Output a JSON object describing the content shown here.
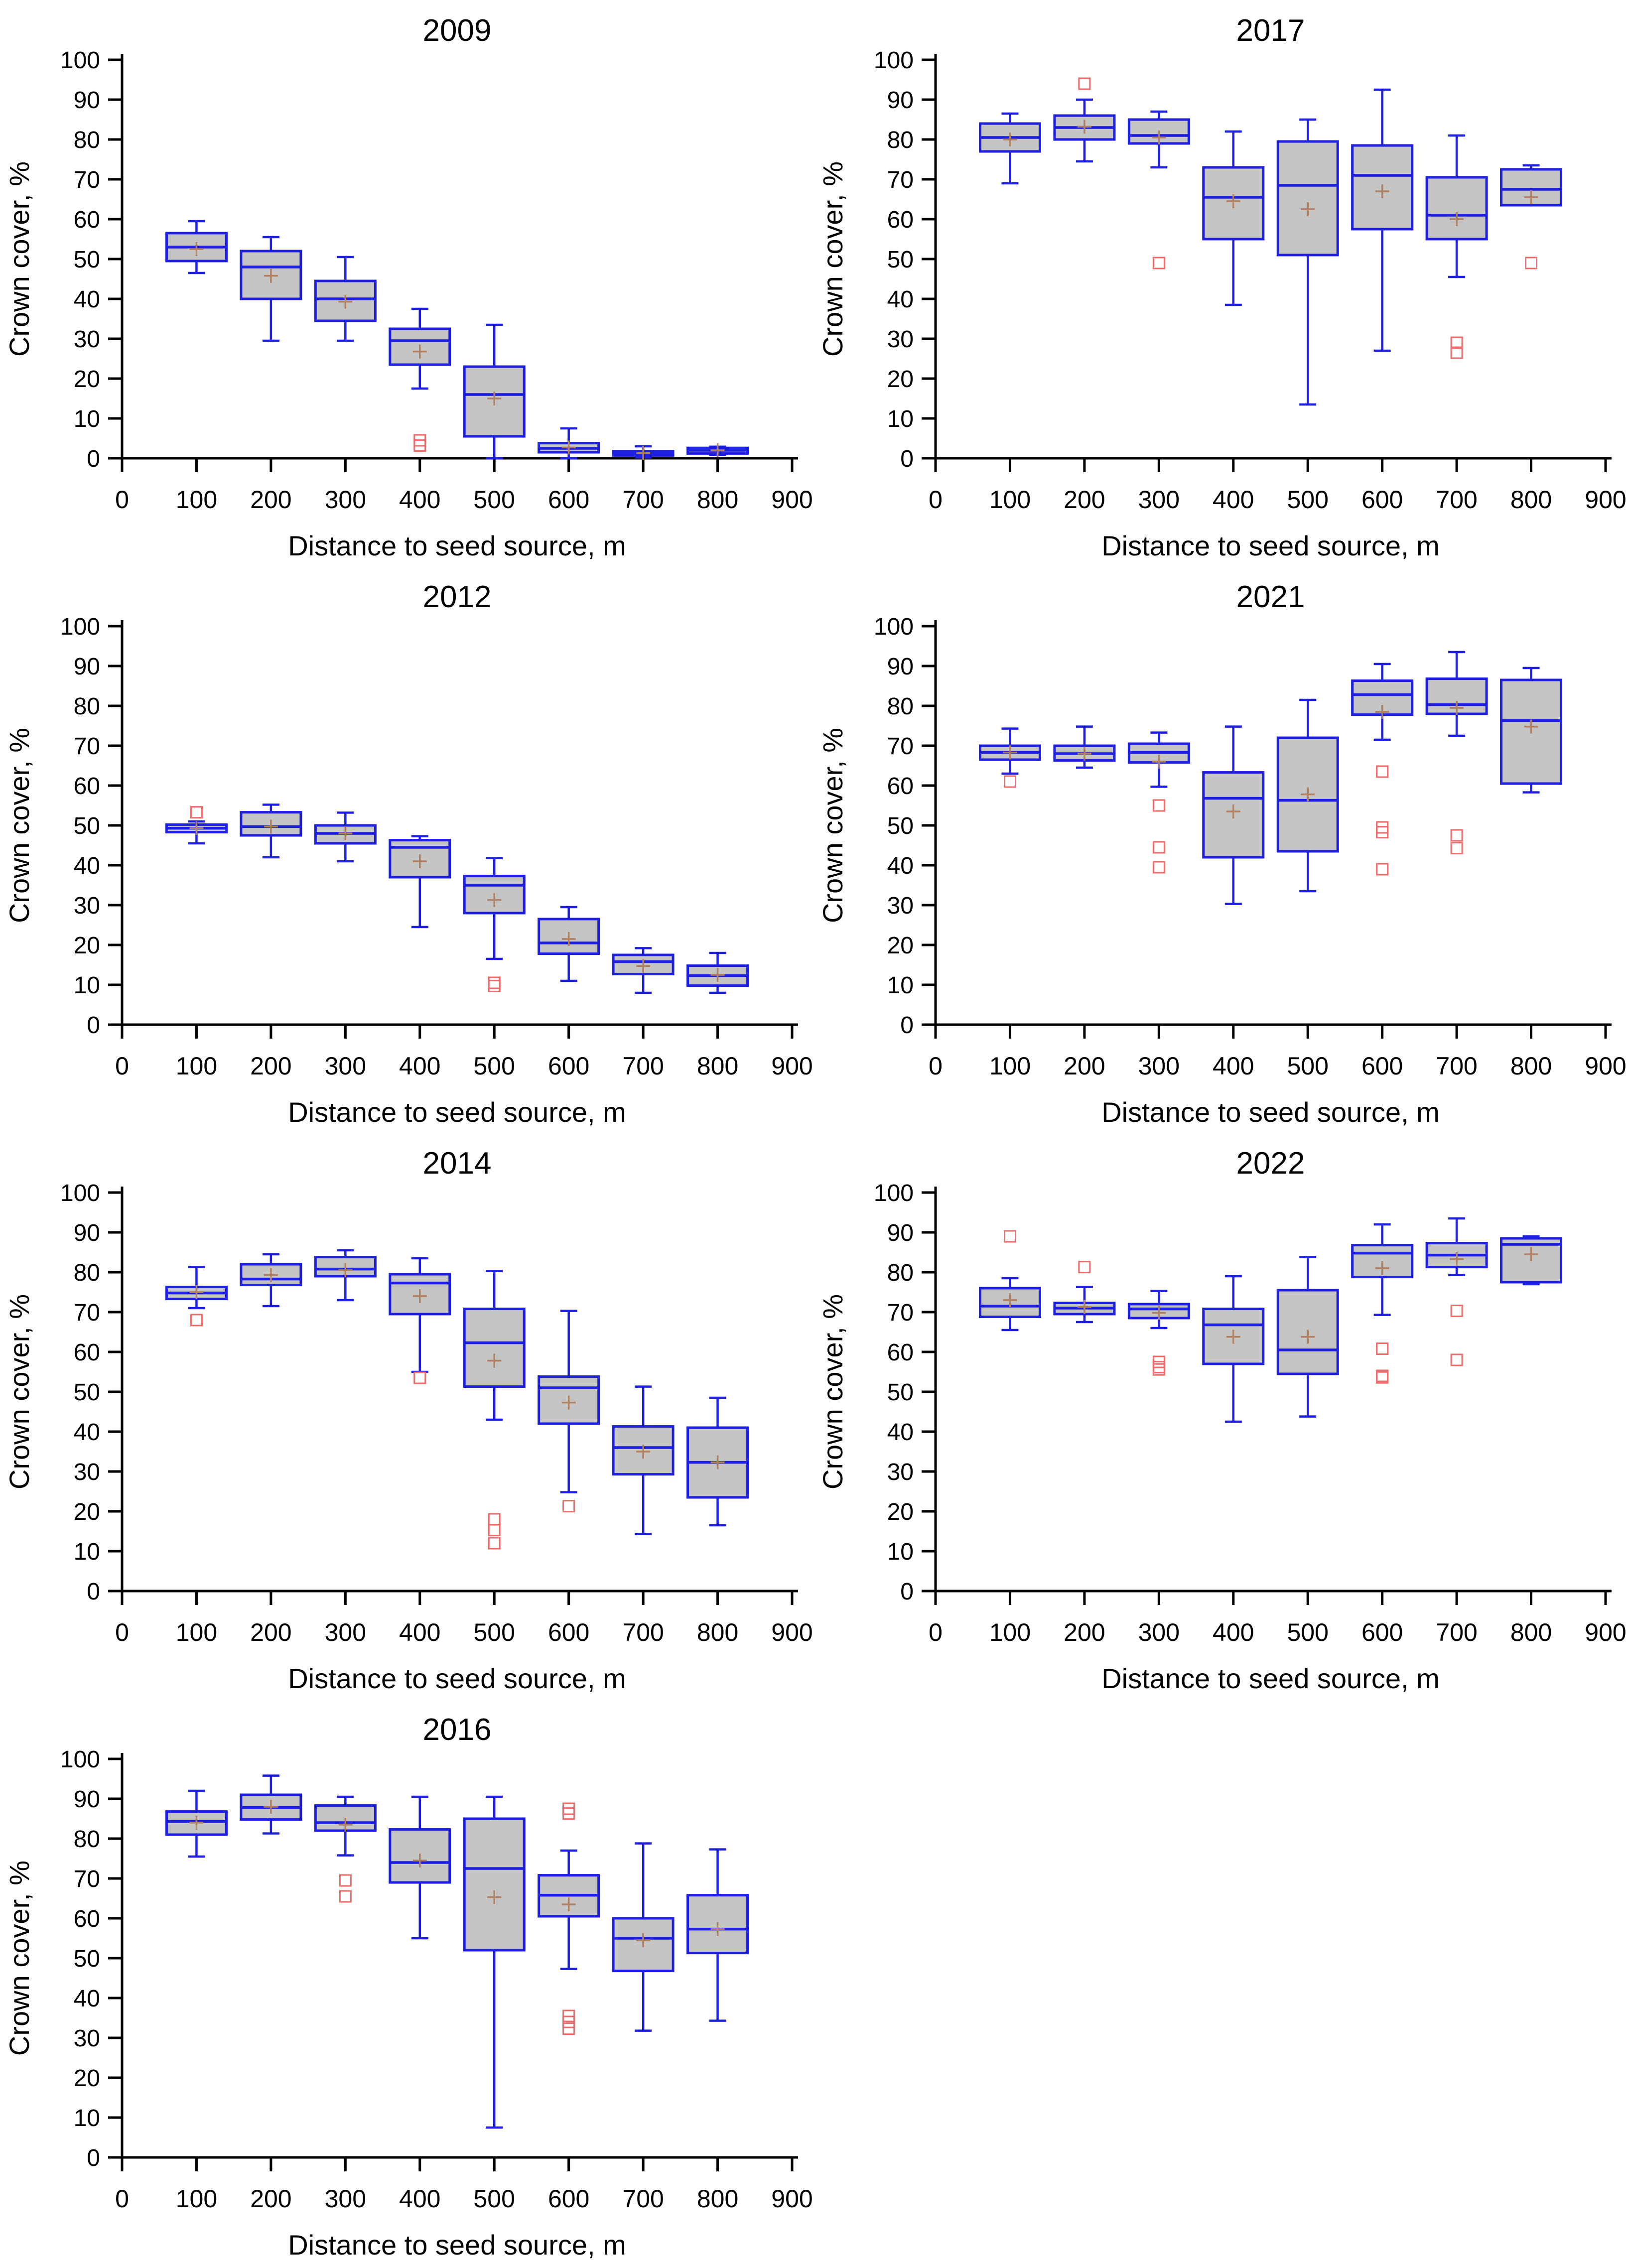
{
  "figure": {
    "xlabel": "Distance to seed source, m",
    "ylabel": "Crown cover, %",
    "xlim": [
      0,
      900
    ],
    "ylim": [
      0,
      100
    ],
    "x_ticks": [
      0,
      100,
      200,
      300,
      400,
      500,
      600,
      700,
      800,
      900
    ],
    "y_ticks": [
      0,
      10,
      20,
      30,
      40,
      50,
      60,
      70,
      80,
      90,
      100
    ],
    "colors": {
      "box_stroke": "#1f1fe0",
      "box_fill": "#c5c5c5",
      "median": "#1f1fe0",
      "whisker": "#1f1fe0",
      "mean_marker": "#b08063",
      "outlier": "#ee6b6b",
      "axis": "#000000",
      "text": "#000000"
    },
    "legend": "none",
    "grid": false
  },
  "chart_data": [
    {
      "type": "box",
      "title": "2009",
      "xlabel": "Distance to seed source, m",
      "ylabel": "Crown cover, %",
      "boxes": [
        {
          "x": 100,
          "low": 46.5,
          "q1": 49.5,
          "median": 53,
          "q3": 56.5,
          "high": 59.5,
          "mean": 52.5,
          "outliers": []
        },
        {
          "x": 200,
          "low": 29.5,
          "q1": 40,
          "median": 48,
          "q3": 52,
          "high": 55.5,
          "mean": 45.8,
          "outliers": []
        },
        {
          "x": 300,
          "low": 29.5,
          "q1": 34.5,
          "median": 40,
          "q3": 44.5,
          "high": 50.5,
          "mean": 39.3,
          "outliers": []
        },
        {
          "x": 400,
          "low": 17.5,
          "q1": 23.5,
          "median": 29.5,
          "q3": 32.5,
          "high": 37.5,
          "mean": 26.8,
          "outliers": [
            4.5,
            3.2
          ]
        },
        {
          "x": 500,
          "low": 0,
          "q1": 5.5,
          "median": 16,
          "q3": 23,
          "high": 33.5,
          "mean": 15,
          "outliers": []
        },
        {
          "x": 600,
          "low": 0,
          "q1": 1.5,
          "median": 2.5,
          "q3": 3.8,
          "high": 7.5,
          "mean": 2.7,
          "outliers": []
        },
        {
          "x": 700,
          "low": 0.2,
          "q1": 0.7,
          "median": 1.2,
          "q3": 1.8,
          "high": 3,
          "mean": 1.3,
          "outliers": []
        },
        {
          "x": 800,
          "low": 0.9,
          "q1": 1.2,
          "median": 2,
          "q3": 2.6,
          "high": 2.9,
          "mean": 2,
          "outliers": []
        }
      ]
    },
    {
      "type": "box",
      "title": "2017",
      "xlabel": "Distance to seed source, m",
      "ylabel": "Crown cover, %",
      "boxes": [
        {
          "x": 100,
          "low": 69,
          "q1": 77,
          "median": 80.5,
          "q3": 84,
          "high": 86.5,
          "mean": 80,
          "outliers": []
        },
        {
          "x": 200,
          "low": 74.5,
          "q1": 80,
          "median": 83,
          "q3": 86,
          "high": 90,
          "mean": 83.2,
          "outliers": [
            94
          ]
        },
        {
          "x": 300,
          "low": 73,
          "q1": 79,
          "median": 81,
          "q3": 85,
          "high": 87,
          "mean": 80.5,
          "outliers": [
            49
          ]
        },
        {
          "x": 400,
          "low": 38.5,
          "q1": 55,
          "median": 65.5,
          "q3": 73,
          "high": 82,
          "mean": 64.5,
          "outliers": []
        },
        {
          "x": 500,
          "low": 13.5,
          "q1": 51,
          "median": 68.5,
          "q3": 79.5,
          "high": 85,
          "mean": 62.5,
          "outliers": []
        },
        {
          "x": 600,
          "low": 27,
          "q1": 57.5,
          "median": 71,
          "q3": 78.5,
          "high": 92.5,
          "mean": 67,
          "outliers": []
        },
        {
          "x": 700,
          "low": 45.5,
          "q1": 55,
          "median": 61,
          "q3": 70.5,
          "high": 81,
          "mean": 60,
          "outliers": [
            29,
            26.5
          ]
        },
        {
          "x": 800,
          "low": 63.5,
          "q1": 63.5,
          "median": 67.5,
          "q3": 72.5,
          "high": 73.5,
          "mean": 65.5,
          "outliers": [
            49
          ]
        }
      ]
    },
    {
      "type": "box",
      "title": "2012",
      "xlabel": "Distance to seed source, m",
      "ylabel": "Crown cover, %",
      "boxes": [
        {
          "x": 100,
          "low": 45.5,
          "q1": 48.3,
          "median": 49.3,
          "q3": 50.2,
          "high": 51,
          "mean": 49.3,
          "outliers": [
            53.3
          ]
        },
        {
          "x": 200,
          "low": 42,
          "q1": 47.5,
          "median": 49.7,
          "q3": 53.3,
          "high": 55.2,
          "mean": 49.7,
          "outliers": []
        },
        {
          "x": 300,
          "low": 41,
          "q1": 45.5,
          "median": 48,
          "q3": 50,
          "high": 53.2,
          "mean": 48,
          "outliers": []
        },
        {
          "x": 400,
          "low": 24.5,
          "q1": 37,
          "median": 44.5,
          "q3": 46.3,
          "high": 47.3,
          "mean": 41,
          "outliers": []
        },
        {
          "x": 500,
          "low": 16.5,
          "q1": 28,
          "median": 35,
          "q3": 37.3,
          "high": 41.8,
          "mean": 31.3,
          "outliers": [
            10.5,
            9.7
          ]
        },
        {
          "x": 600,
          "low": 11,
          "q1": 17.8,
          "median": 20.5,
          "q3": 26.5,
          "high": 29.5,
          "mean": 21.5,
          "outliers": []
        },
        {
          "x": 700,
          "low": 8,
          "q1": 12.7,
          "median": 15.8,
          "q3": 17.5,
          "high": 19.2,
          "mean": 14.7,
          "outliers": []
        },
        {
          "x": 800,
          "low": 8,
          "q1": 9.8,
          "median": 12.3,
          "q3": 14.8,
          "high": 18,
          "mean": 12.5,
          "outliers": []
        }
      ]
    },
    {
      "type": "box",
      "title": "2021",
      "xlabel": "Distance to seed source, m",
      "ylabel": "Crown cover, %",
      "boxes": [
        {
          "x": 100,
          "low": 63,
          "q1": 66.5,
          "median": 68.3,
          "q3": 70,
          "high": 74.3,
          "mean": 68.3,
          "outliers": [
            61
          ]
        },
        {
          "x": 200,
          "low": 64.5,
          "q1": 66.3,
          "median": 68,
          "q3": 70,
          "high": 74.8,
          "mean": 68,
          "outliers": []
        },
        {
          "x": 300,
          "low": 59.7,
          "q1": 65.8,
          "median": 68.3,
          "q3": 70.5,
          "high": 73.3,
          "mean": 66,
          "outliers": [
            55,
            44.5,
            39.5
          ]
        },
        {
          "x": 400,
          "low": 30.3,
          "q1": 42,
          "median": 56.8,
          "q3": 63.3,
          "high": 74.8,
          "mean": 53.5,
          "outliers": []
        },
        {
          "x": 500,
          "low": 33.5,
          "q1": 43.5,
          "median": 56.3,
          "q3": 72,
          "high": 81.5,
          "mean": 57.8,
          "outliers": []
        },
        {
          "x": 600,
          "low": 71.5,
          "q1": 77.8,
          "median": 82.8,
          "q3": 86.3,
          "high": 90.5,
          "mean": 78.5,
          "outliers": [
            63.5,
            49.5,
            48.3,
            39
          ]
        },
        {
          "x": 700,
          "low": 72.5,
          "q1": 78,
          "median": 80.3,
          "q3": 86.8,
          "high": 93.5,
          "mean": 79.5,
          "outliers": [
            47.5,
            44.3
          ]
        },
        {
          "x": 800,
          "low": 58.3,
          "q1": 60.5,
          "median": 76.3,
          "q3": 86.5,
          "high": 89.5,
          "mean": 74.8,
          "outliers": []
        }
      ]
    },
    {
      "type": "box",
      "title": "2014",
      "xlabel": "Distance to seed source, m",
      "ylabel": "Crown cover, %",
      "boxes": [
        {
          "x": 100,
          "low": 71,
          "q1": 73.3,
          "median": 74.8,
          "q3": 76.3,
          "high": 81.3,
          "mean": 75,
          "outliers": [
            68
          ]
        },
        {
          "x": 200,
          "low": 71.5,
          "q1": 76.8,
          "median": 78.3,
          "q3": 82,
          "high": 84.5,
          "mean": 79.3,
          "outliers": []
        },
        {
          "x": 300,
          "low": 73,
          "q1": 79,
          "median": 80.8,
          "q3": 83.8,
          "high": 85.5,
          "mean": 80.5,
          "outliers": []
        },
        {
          "x": 400,
          "low": 55,
          "q1": 69.5,
          "median": 77.3,
          "q3": 79.5,
          "high": 83.5,
          "mean": 74,
          "outliers": [
            53.5
          ]
        },
        {
          "x": 500,
          "low": 43,
          "q1": 51.3,
          "median": 62.3,
          "q3": 70.8,
          "high": 80.3,
          "mean": 57.8,
          "outliers": [
            18,
            15.3,
            12
          ]
        },
        {
          "x": 600,
          "low": 24.8,
          "q1": 42,
          "median": 51,
          "q3": 53.8,
          "high": 70.3,
          "mean": 47.3,
          "outliers": [
            21.3
          ]
        },
        {
          "x": 700,
          "low": 14.3,
          "q1": 29.3,
          "median": 36,
          "q3": 41.3,
          "high": 51.3,
          "mean": 35,
          "outliers": []
        },
        {
          "x": 800,
          "low": 16.5,
          "q1": 23.5,
          "median": 32.3,
          "q3": 41,
          "high": 48.5,
          "mean": 32.3,
          "outliers": []
        }
      ]
    },
    {
      "type": "box",
      "title": "2022",
      "xlabel": "Distance to seed source, m",
      "ylabel": "Crown cover, %",
      "boxes": [
        {
          "x": 100,
          "low": 65.5,
          "q1": 68.8,
          "median": 71.5,
          "q3": 76,
          "high": 78.5,
          "mean": 73,
          "outliers": [
            89
          ]
        },
        {
          "x": 200,
          "low": 67.5,
          "q1": 69.5,
          "median": 71,
          "q3": 72.3,
          "high": 76.3,
          "mean": 71.3,
          "outliers": [
            81.3
          ]
        },
        {
          "x": 300,
          "low": 66,
          "q1": 68.5,
          "median": 70.8,
          "q3": 72,
          "high": 75.3,
          "mean": 69.8,
          "outliers": [
            57.5,
            56.2,
            55.6
          ]
        },
        {
          "x": 400,
          "low": 42.5,
          "q1": 57,
          "median": 66.8,
          "q3": 70.8,
          "high": 79,
          "mean": 63.8,
          "outliers": []
        },
        {
          "x": 500,
          "low": 43.8,
          "q1": 54.5,
          "median": 60.5,
          "q3": 75.5,
          "high": 83.8,
          "mean": 63.8,
          "outliers": []
        },
        {
          "x": 600,
          "low": 69.3,
          "q1": 78.8,
          "median": 84.8,
          "q3": 86.8,
          "high": 92,
          "mean": 81,
          "outliers": [
            60.8,
            54,
            53.6
          ]
        },
        {
          "x": 700,
          "low": 79.3,
          "q1": 81.3,
          "median": 84.3,
          "q3": 87.3,
          "high": 93.5,
          "mean": 83.3,
          "outliers": [
            70.3,
            58
          ]
        },
        {
          "x": 800,
          "low": 77,
          "q1": 77.5,
          "median": 87,
          "q3": 88.5,
          "high": 89,
          "mean": 84.5,
          "outliers": []
        }
      ]
    },
    {
      "type": "box",
      "title": "2016",
      "xlabel": "Distance to seed source, m",
      "ylabel": "Crown cover, %",
      "boxes": [
        {
          "x": 100,
          "low": 75.5,
          "q1": 81,
          "median": 84.3,
          "q3": 86.8,
          "high": 92,
          "mean": 84,
          "outliers": []
        },
        {
          "x": 200,
          "low": 81.3,
          "q1": 84.8,
          "median": 87.8,
          "q3": 91,
          "high": 95.8,
          "mean": 88,
          "outliers": []
        },
        {
          "x": 300,
          "low": 75.8,
          "q1": 82,
          "median": 84,
          "q3": 88.3,
          "high": 90.5,
          "mean": 83.5,
          "outliers": [
            69.5,
            65.5
          ]
        },
        {
          "x": 400,
          "low": 55,
          "q1": 69,
          "median": 74,
          "q3": 82.3,
          "high": 90.5,
          "mean": 74.5,
          "outliers": []
        },
        {
          "x": 500,
          "low": 7.5,
          "q1": 52,
          "median": 72.5,
          "q3": 85,
          "high": 90.5,
          "mean": 65.3,
          "outliers": []
        },
        {
          "x": 600,
          "low": 47.3,
          "q1": 60.5,
          "median": 65.8,
          "q3": 70.8,
          "high": 77,
          "mean": 63.5,
          "outliers": [
            87.5,
            86.3,
            35.5,
            34,
            32.3
          ]
        },
        {
          "x": 700,
          "low": 31.8,
          "q1": 46.8,
          "median": 55,
          "q3": 60,
          "high": 78.8,
          "mean": 54.5,
          "outliers": []
        },
        {
          "x": 800,
          "low": 34.3,
          "q1": 51.3,
          "median": 57.3,
          "q3": 65.8,
          "high": 77.3,
          "mean": 57.3,
          "outliers": []
        }
      ]
    }
  ]
}
